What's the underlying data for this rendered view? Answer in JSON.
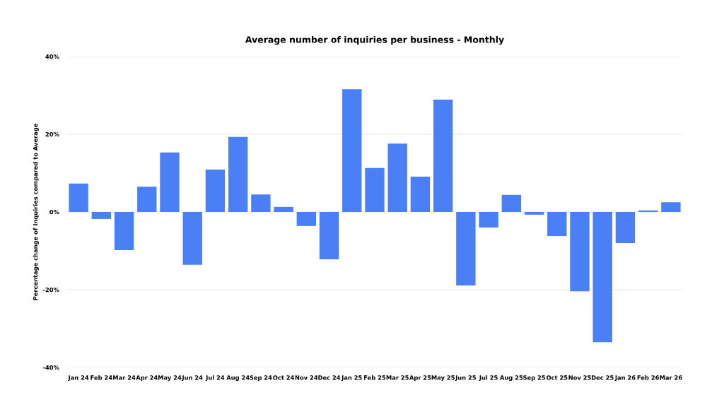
{
  "chart_data": {
    "type": "bar",
    "title": "Average number of inquiries per business - Monthly",
    "ylabel": "Percentage change of Inquiries compared to Average",
    "categories": [
      "Jan 24",
      "Feb 24",
      "Mar 24",
      "Apr 24",
      "May 24",
      "Jun 24",
      "Jul 24",
      "Aug 24",
      "Sep 24",
      "Oct 24",
      "Nov 24",
      "Dec 24",
      "Jan 25",
      "Feb 25",
      "Mar 25",
      "Apr 25",
      "May 25",
      "Jun 25",
      "Jul 25",
      "Aug 25",
      "Sep 25",
      "Oct 25",
      "Nov 25",
      "Dec 25",
      "Jan 26",
      "Feb 26",
      "Mar 26"
    ],
    "values": [
      7.3,
      -1.8,
      -9.8,
      6.5,
      15.3,
      -13.6,
      10.9,
      19.3,
      4.5,
      1.3,
      -3.6,
      -12.2,
      31.6,
      11.3,
      17.6,
      9.1,
      28.9,
      -18.9,
      -4,
      4.4,
      -0.7,
      -6.2,
      -20.4,
      -33.5,
      -8,
      0.4,
      2.5
    ],
    "color": "#4a7ff5",
    "ylim": [
      -40,
      40
    ],
    "yticks": [
      {
        "value": -40,
        "label": "-40%"
      },
      {
        "value": -20,
        "label": "-20%"
      },
      {
        "value": 0,
        "label": "0%"
      },
      {
        "value": 20,
        "label": "20%"
      },
      {
        "value": 40,
        "label": "40%"
      }
    ],
    "grid": "y",
    "legend": false
  }
}
